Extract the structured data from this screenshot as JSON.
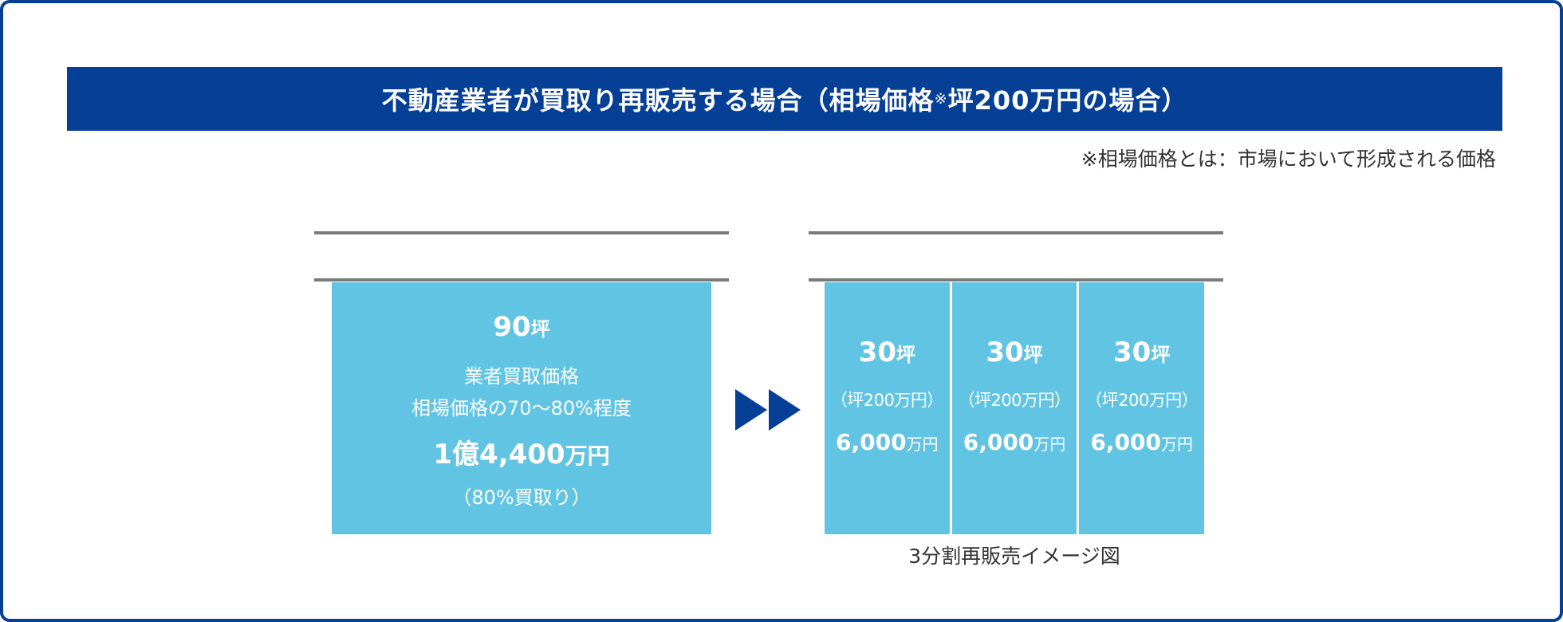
{
  "title": {
    "main": "不動産業者が買取り再販売する場合（相場価格",
    "note_mark": "※",
    "tail": "坪200万円の場合）"
  },
  "footnote": "※相場価格とは：市場において形成される価格",
  "single_block": {
    "area_number": "90",
    "area_unit": "坪",
    "label_line1": "業者買取価格",
    "label_line2": "相場価格の70～80%程度",
    "price_number": "1億4,400",
    "price_unit": "万円",
    "purchase_rate": "（80%買取り）"
  },
  "split_blocks": [
    {
      "area_number": "30",
      "area_unit": "坪",
      "unit_price": "（坪200万円）",
      "price_number": "6,000",
      "price_unit": "万円"
    },
    {
      "area_number": "30",
      "area_unit": "坪",
      "unit_price": "（坪200万円）",
      "price_number": "6,000",
      "price_unit": "万円"
    },
    {
      "area_number": "30",
      "area_unit": "坪",
      "unit_price": "（坪200万円）",
      "price_number": "6,000",
      "price_unit": "万円"
    }
  ],
  "caption": "3分割再販売イメージ図",
  "colors": {
    "brand_blue": "#063f96",
    "block_fill": "#62c4e3",
    "rule_gray": "#7a7a7a",
    "text_dark": "#333333"
  },
  "icons": {
    "arrow": "double-triangle-right-icon"
  }
}
